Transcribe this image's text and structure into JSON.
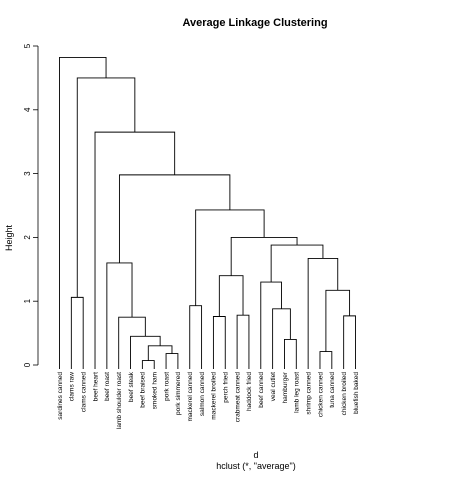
{
  "chart_data": {
    "type": "dendrogram",
    "title": "Average Linkage Clustering",
    "ylabel": "Height",
    "xlabel": "d",
    "subtitle": "hclust (*, \"average\")",
    "ylim": [
      0,
      5
    ],
    "yticks": [
      0,
      1,
      2,
      3,
      4,
      5
    ],
    "grid": false,
    "leaves": [
      "sardines canned",
      "clams raw",
      "clams canned",
      "beef heart",
      "beef roast",
      "lamb shoulder roast",
      "beef steak",
      "beef braised",
      "smoked ham",
      "pork roast",
      "pork simmered",
      "mackerel canned",
      "salmon canned",
      "mackerel broiled",
      "perch fried",
      "crabmeat canned",
      "haddock fried",
      "beef canned",
      "veal cutlet",
      "hamburger",
      "lamb leg roast",
      "shrimp canned",
      "chicken canned",
      "tuna canned",
      "chicken broiled",
      "bluefish baked"
    ],
    "merges": [
      {
        "a": "L7",
        "b": "L8",
        "height": 0.07
      },
      {
        "a": "L9",
        "b": "L10",
        "height": 0.18
      },
      {
        "a": "M1",
        "b": "M2",
        "height": 0.3
      },
      {
        "a": "L6",
        "b": "M3",
        "height": 0.45
      },
      {
        "a": "L5",
        "b": "M4",
        "height": 0.75
      },
      {
        "a": "L4",
        "b": "M5",
        "height": 1.6
      },
      {
        "a": "L1",
        "b": "L2",
        "height": 1.06
      },
      {
        "a": "L11",
        "b": "L12",
        "height": 0.93
      },
      {
        "a": "L13",
        "b": "L14",
        "height": 0.76
      },
      {
        "a": "L15",
        "b": "L16",
        "height": 0.78
      },
      {
        "a": "M9",
        "b": "M10",
        "height": 1.4
      },
      {
        "a": "L19",
        "b": "L20",
        "height": 0.4
      },
      {
        "a": "L18",
        "b": "M12",
        "height": 0.88
      },
      {
        "a": "L17",
        "b": "M13",
        "height": 1.3
      },
      {
        "a": "L22",
        "b": "L23",
        "height": 0.21
      },
      {
        "a": "L24",
        "b": "L25",
        "height": 0.77
      },
      {
        "a": "M15",
        "b": "M16",
        "height": 1.17
      },
      {
        "a": "L21",
        "b": "M17",
        "height": 1.67
      },
      {
        "a": "M14",
        "b": "M18",
        "height": 1.88
      },
      {
        "a": "M11",
        "b": "M19",
        "height": 2.0
      },
      {
        "a": "M8",
        "b": "M20",
        "height": 2.43
      },
      {
        "a": "M6",
        "b": "M21",
        "height": 2.98
      },
      {
        "a": "L3",
        "b": "M22",
        "height": 3.65
      },
      {
        "a": "M7",
        "b": "M23",
        "height": 4.5
      },
      {
        "a": "L0",
        "b": "M24",
        "height": 4.82
      }
    ]
  }
}
